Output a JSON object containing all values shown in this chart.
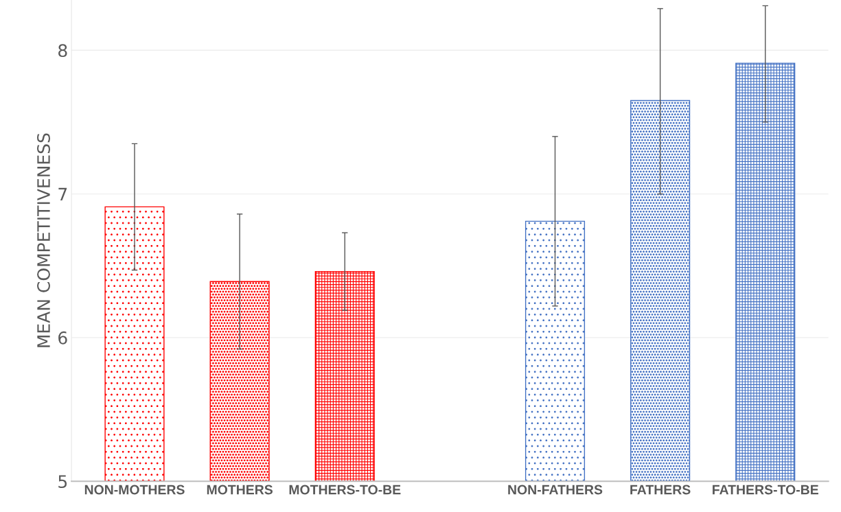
{
  "chart_data": {
    "type": "bar",
    "ylabel": "MEAN COMPETITIVENESS",
    "categories": [
      "NON-MOTHERS",
      "MOTHERS",
      "MOTHERS-TO-BE",
      null,
      "NON-FATHERS",
      "FATHERS",
      "FATHERS-TO-BE"
    ],
    "values": [
      6.91,
      6.39,
      6.46,
      null,
      6.81,
      7.65,
      7.91
    ],
    "colors": [
      "#ff0000",
      "#ff0000",
      "#ff0000",
      null,
      "#4472c4",
      "#4472c4",
      "#4472c4"
    ],
    "errors": [
      [
        6.47,
        7.35
      ],
      [
        5.92,
        6.86
      ],
      [
        6.19,
        6.73
      ],
      null,
      [
        6.22,
        7.4
      ],
      [
        7.0,
        8.29
      ],
      [
        7.5,
        8.31
      ]
    ],
    "ylim": [
      5,
      8.35
    ],
    "yticks": [
      5,
      6,
      7,
      8
    ],
    "grid": "y"
  }
}
